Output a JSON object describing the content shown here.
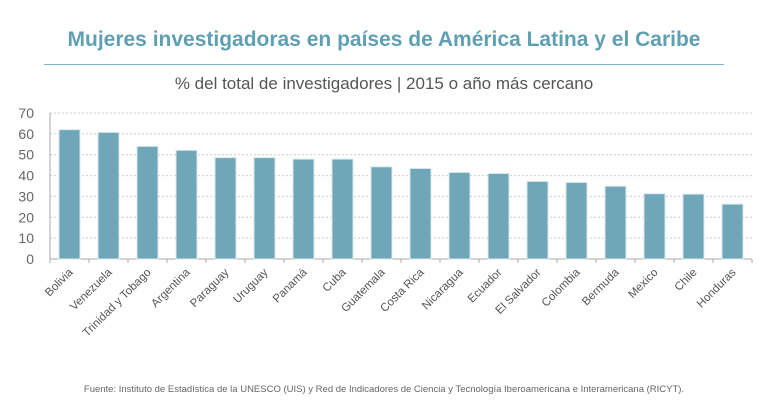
{
  "title": "Mujeres investigadoras en países de América Latina y el Caribe",
  "subtitle": "% del total de investigadores | 2015 o año más cercano",
  "source": "Fuente: Instituto de Estadística de la UNESCO (UIS) y Red de Indicadores de Ciencia y Tecnología Iberoamericana e Interamericana (RICYT).",
  "colors": {
    "bar": "#6fa6b8",
    "title": "#5f9fb3"
  },
  "chart_data": {
    "type": "bar",
    "title": "Mujeres investigadoras en países de América Latina y el Caribe",
    "ylabel": "% del total de investigadores",
    "categories": [
      "Bolivia",
      "Venezuela",
      "Trinidad y Tobago",
      "Argentina",
      "Paraguay",
      "Uruguay",
      "Panamá",
      "Cuba",
      "Guatemala",
      "Costa Rica",
      "Nicaragua",
      "Ecuador",
      "El Salvador",
      "Colombia",
      "Bermuda",
      "Mexico",
      "Chile",
      "Honduras"
    ],
    "values": [
      62.0,
      60.7,
      54.0,
      52.1,
      48.6,
      48.6,
      47.9,
      47.9,
      44.2,
      43.4,
      41.5,
      41.0,
      37.2,
      36.7,
      34.9,
      31.3,
      31.1,
      26.3
    ],
    "ylim": [
      0,
      70
    ],
    "yticks": [
      0,
      10,
      20,
      30,
      40,
      50,
      60,
      70
    ],
    "grid": true
  }
}
